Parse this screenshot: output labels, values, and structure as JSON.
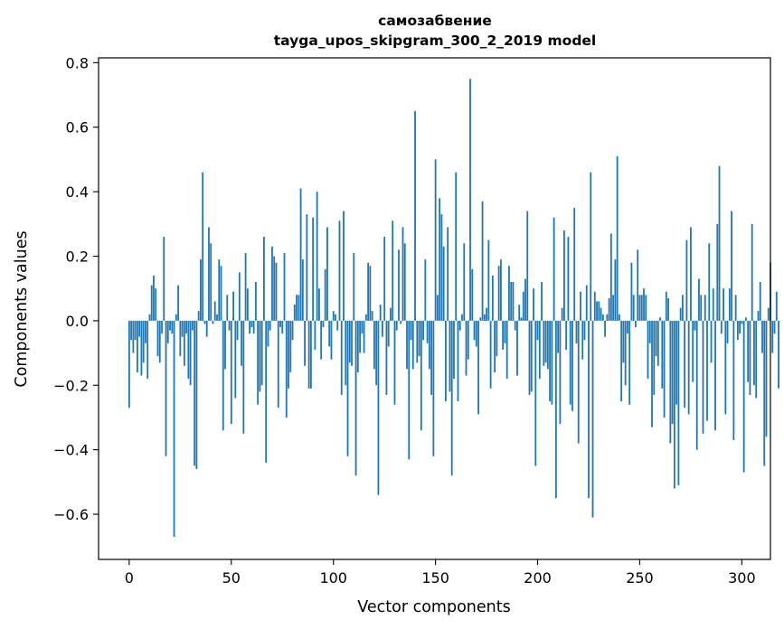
{
  "chart_data": {
    "type": "bar",
    "title": "самозабвение",
    "subtitle": "tayga_upos_skipgram_300_2_2019 model",
    "xlabel": "Vector components",
    "ylabel": "Components values",
    "xlim": [
      -15,
      314
    ],
    "ylim": [
      -0.74,
      0.815
    ],
    "xticks": [
      0,
      50,
      100,
      150,
      200,
      250,
      300
    ],
    "xtick_labels": [
      "0",
      "50",
      "100",
      "150",
      "200",
      "250",
      "300"
    ],
    "yticks": [
      -0.6,
      -0.4,
      -0.2,
      0.0,
      0.2,
      0.4,
      0.6,
      0.8
    ],
    "ytick_labels": [
      "−0.6",
      "−0.4",
      "−0.2",
      "0.0",
      "0.2",
      "0.4",
      "0.6",
      "0.8"
    ],
    "grid": false,
    "bar_color": "#1f77b4",
    "values": [
      -0.27,
      -0.06,
      -0.1,
      -0.06,
      -0.16,
      -0.05,
      -0.17,
      -0.13,
      -0.07,
      -0.18,
      0.02,
      0.11,
      0.14,
      0.1,
      -0.11,
      -0.13,
      -0.04,
      0.26,
      -0.42,
      -0.07,
      -0.03,
      -0.04,
      -0.67,
      0.02,
      0.11,
      -0.11,
      -0.05,
      -0.14,
      -0.04,
      -0.18,
      -0.2,
      -0.03,
      -0.45,
      -0.46,
      0.03,
      0.19,
      0.46,
      -0.01,
      -0.05,
      0.29,
      0.24,
      -0.01,
      0.06,
      0.02,
      0.19,
      0.17,
      -0.34,
      -0.15,
      0.08,
      -0.03,
      -0.32,
      0.09,
      -0.24,
      -0.06,
      0.15,
      -0.14,
      -0.35,
      0.21,
      0.1,
      -0.04,
      -0.02,
      -0.04,
      0.12,
      -0.26,
      -0.22,
      -0.2,
      0.26,
      -0.44,
      -0.08,
      -0.03,
      0.23,
      0.2,
      0.18,
      -0.27,
      -0.02,
      -0.04,
      0.21,
      -0.3,
      -0.21,
      -0.16,
      -0.06,
      0.05,
      0.08,
      0.08,
      0.41,
      0.19,
      -0.14,
      0.33,
      -0.21,
      -0.21,
      0.32,
      -0.09,
      0.4,
      0.1,
      -0.12,
      -0.02,
      0.16,
      0.29,
      -0.08,
      -0.12,
      0.03,
      0.02,
      -0.03,
      0.31,
      -0.23,
      0.34,
      -0.2,
      -0.42,
      -0.13,
      -0.14,
      0.21,
      -0.48,
      -0.16,
      -0.1,
      -0.04,
      -0.1,
      0.02,
      0.18,
      0.17,
      0.03,
      -0.15,
      -0.2,
      -0.54,
      0.05,
      -0.05,
      0.26,
      -0.23,
      -0.08,
      0.04,
      0.31,
      -0.26,
      -0.03,
      0.22,
      -0.01,
      0.29,
      0.24,
      -0.15,
      -0.43,
      -0.06,
      -0.15,
      0.65,
      -0.13,
      -0.11,
      -0.34,
      -0.06,
      0.19,
      -0.07,
      -0.15,
      -0.23,
      -0.42,
      0.5,
      0.08,
      0.38,
      0.33,
      0.23,
      -0.25,
      0.29,
      -0.22,
      -0.48,
      -0.18,
      0.46,
      -0.25,
      -0.03,
      0.02,
      0.24,
      -0.17,
      -0.12,
      0.75,
      0.16,
      -0.06,
      -0.08,
      -0.29,
      0.01,
      0.37,
      0.02,
      0.04,
      0.25,
      -0.21,
      0.14,
      -0.16,
      -0.11,
      0.17,
      0.19,
      -0.09,
      -0.07,
      -0.18,
      0.17,
      0.12,
      0.12,
      -0.03,
      -0.17,
      0.05,
      0.01,
      0.09,
      0.13,
      0.34,
      -0.23,
      -0.22,
      0.1,
      -0.45,
      -0.06,
      -0.18,
      0.12,
      -0.14,
      -0.13,
      -0.15,
      -0.25,
      -0.26,
      0.32,
      -0.55,
      -0.1,
      -0.32,
      0.04,
      0.28,
      -0.09,
      0.26,
      -0.26,
      -0.28,
      0.35,
      -0.07,
      -0.38,
      0.09,
      -0.12,
      -0.06,
      0.11,
      -0.55,
      0.46,
      -0.61,
      0.09,
      0.06,
      0.06,
      0.04,
      0.02,
      -0.05,
      0.02,
      0.07,
      0.27,
      0.08,
      0.19,
      0.51,
      0.02,
      -0.25,
      -0.13,
      -0.2,
      -0.04,
      -0.26,
      0.18,
      0.08,
      -0.02,
      0.22,
      0.08,
      0.08,
      0.1,
      0.08,
      -0.18,
      -0.07,
      -0.33,
      -0.23,
      -0.11,
      -0.14,
      0.01,
      -0.21,
      -0.3,
      0.09,
      0.07,
      -0.38,
      -0.32,
      -0.52,
      -0.26,
      -0.51,
      0.04,
      0.08,
      -0.27,
      0.25,
      -0.29,
      0.29,
      -0.19,
      -0.03,
      -0.4,
      0.13,
      0.08,
      -0.35,
      0.08,
      -0.31,
      0.24,
      -0.13,
      0.1,
      -0.34,
      0.3,
      0.48,
      -0.04,
      0.1,
      -0.29,
      -0.07,
      0.1,
      0.34,
      -0.37,
      0.08,
      -0.06,
      -0.04,
      -0.01,
      -0.47,
      0.01,
      -0.19,
      -0.23,
      0.3,
      -0.2,
      -0.24,
      0.03,
      0.12,
      -0.1,
      -0.45,
      -0.36,
      0.04,
      0.18,
      -0.1,
      -0.04,
      0.09,
      -0.21
    ]
  }
}
